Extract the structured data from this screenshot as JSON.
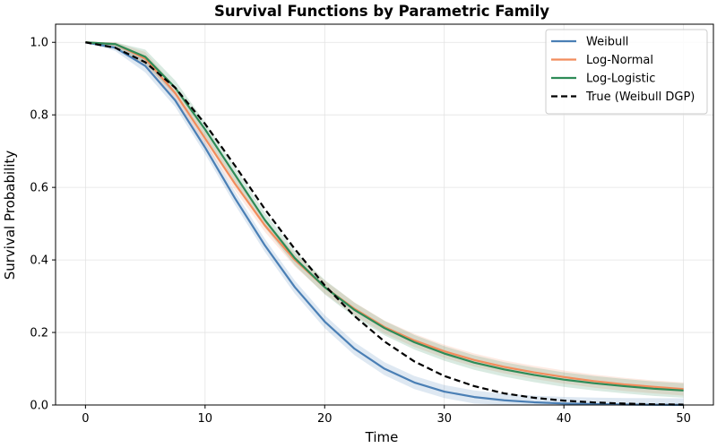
{
  "chart_data": {
    "type": "line",
    "title": "Survival Functions by Parametric Family",
    "xlabel": "Time",
    "ylabel": "Survival Probability",
    "xlim": [
      -2.5,
      52.5
    ],
    "ylim": [
      0,
      1.05
    ],
    "xticks": [
      0,
      10,
      20,
      30,
      40,
      50
    ],
    "yticks": [
      0.0,
      0.2,
      0.4,
      0.6,
      0.8,
      1.0
    ],
    "xtick_labels": [
      "0",
      "10",
      "20",
      "30",
      "40",
      "50"
    ],
    "ytick_labels": [
      "0.0",
      "0.2",
      "0.4",
      "0.6",
      "0.8",
      "1.0"
    ],
    "grid": true,
    "legend_position": "top-right",
    "x": [
      0,
      2.5,
      5,
      7.5,
      10,
      12.5,
      15,
      17.5,
      20,
      22.5,
      25,
      27.5,
      30,
      32.5,
      35,
      37.5,
      40,
      42.5,
      45,
      47.5,
      50
    ],
    "series": [
      {
        "name": "Weibull",
        "color": "#4a7fb5",
        "dash": "solid",
        "values": [
          1.0,
          0.985,
          0.935,
          0.84,
          0.71,
          0.57,
          0.44,
          0.325,
          0.23,
          0.155,
          0.1,
          0.062,
          0.037,
          0.022,
          0.013,
          0.0075,
          0.0042,
          0.0024,
          0.0013,
          0.0007,
          0.0004
        ],
        "band": 0.018
      },
      {
        "name": "Log-Normal",
        "color": "#f28c5c",
        "dash": "solid",
        "values": [
          1.0,
          0.995,
          0.955,
          0.86,
          0.735,
          0.61,
          0.495,
          0.4,
          0.325,
          0.265,
          0.215,
          0.178,
          0.148,
          0.124,
          0.105,
          0.09,
          0.077,
          0.066,
          0.057,
          0.05,
          0.044
        ],
        "band": 0.018
      },
      {
        "name": "Log-Logistic",
        "color": "#2e8b57",
        "dash": "solid",
        "values": [
          1.0,
          0.995,
          0.96,
          0.875,
          0.76,
          0.635,
          0.51,
          0.405,
          0.325,
          0.262,
          0.212,
          0.173,
          0.142,
          0.117,
          0.098,
          0.083,
          0.07,
          0.06,
          0.052,
          0.045,
          0.04
        ],
        "band": 0.02
      },
      {
        "name": "True (Weibull DGP)",
        "color": "#000000",
        "dash": "dashed",
        "values": [
          1.0,
          0.985,
          0.945,
          0.875,
          0.775,
          0.66,
          0.54,
          0.43,
          0.33,
          0.245,
          0.175,
          0.12,
          0.08,
          0.052,
          0.032,
          0.02,
          0.012,
          0.007,
          0.004,
          0.002,
          0.001
        ]
      }
    ]
  }
}
